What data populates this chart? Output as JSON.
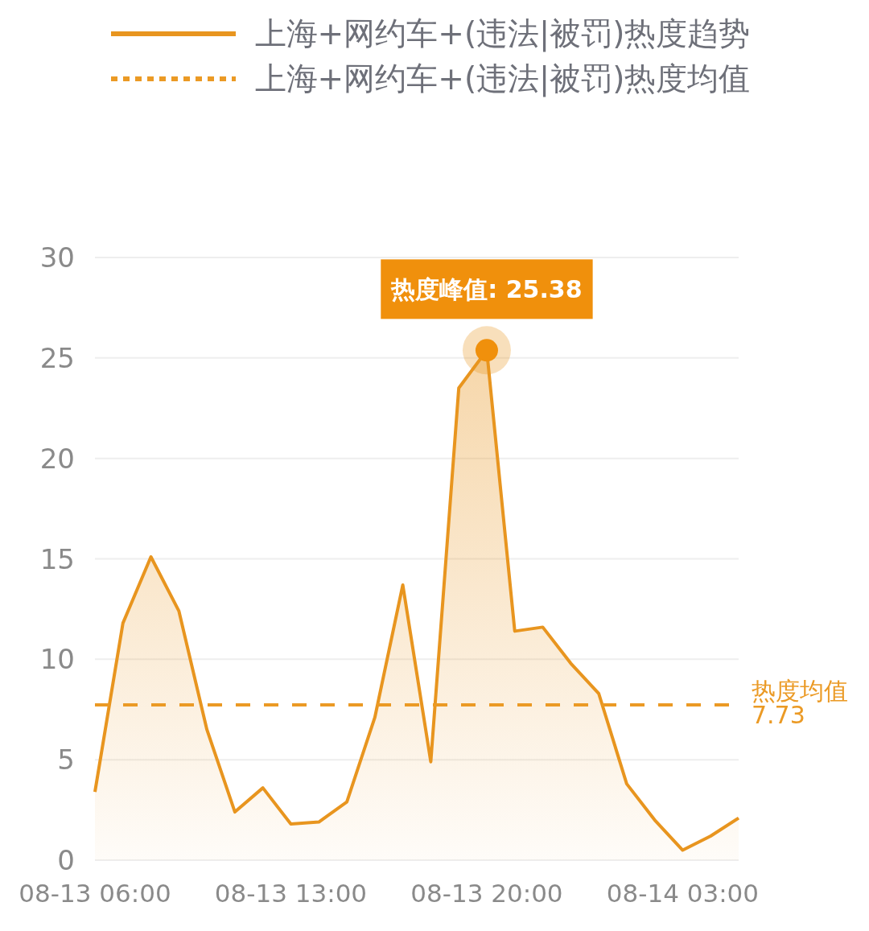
{
  "chart_data": {
    "type": "area",
    "categories": [
      "08-13 06:00",
      null,
      null,
      null,
      null,
      null,
      null,
      "08-13 13:00",
      null,
      null,
      null,
      null,
      null,
      null,
      "08-13 20:00",
      null,
      null,
      null,
      null,
      null,
      null,
      "08-14 03:00",
      null,
      null
    ],
    "series": [
      {
        "name": "上海+网约车+(违法|被罚)热度趋势",
        "color": "#e8951f",
        "values": [
          3.4,
          11.8,
          15.1,
          12.4,
          6.5,
          2.4,
          3.6,
          1.8,
          1.9,
          2.9,
          7.1,
          13.7,
          4.9,
          23.5,
          25.38,
          11.4,
          11.6,
          9.8,
          8.3,
          3.8,
          2.0,
          0.5,
          1.2,
          2.1
        ]
      },
      {
        "name": "上海+网约车+(违法|被罚)热度均值",
        "type": "line",
        "line_style": "dashed",
        "color": "#eb9a25",
        "values": [
          7.73,
          7.73,
          7.73,
          7.73,
          7.73,
          7.73,
          7.73,
          7.73,
          7.73,
          7.73,
          7.73,
          7.73,
          7.73,
          7.73,
          7.73,
          7.73,
          7.73,
          7.73,
          7.73,
          7.73,
          7.73,
          7.73,
          7.73,
          7.73
        ],
        "value_labels": [
          null,
          null,
          null,
          null,
          null,
          null,
          null,
          null,
          null,
          null,
          null,
          null,
          null,
          null,
          null,
          null,
          null,
          null,
          null,
          null,
          null,
          null,
          null,
          "热度均值\n7.73"
        ]
      }
    ],
    "ylim": [
      0,
      30
    ],
    "yticks": [
      0,
      5,
      10,
      15,
      20,
      25,
      30
    ],
    "grid": "y",
    "legend": "top",
    "annotations": [
      {
        "text": "热度峰值: 25.38",
        "x": "08-13 20:00",
        "y": 25.38
      }
    ]
  }
}
